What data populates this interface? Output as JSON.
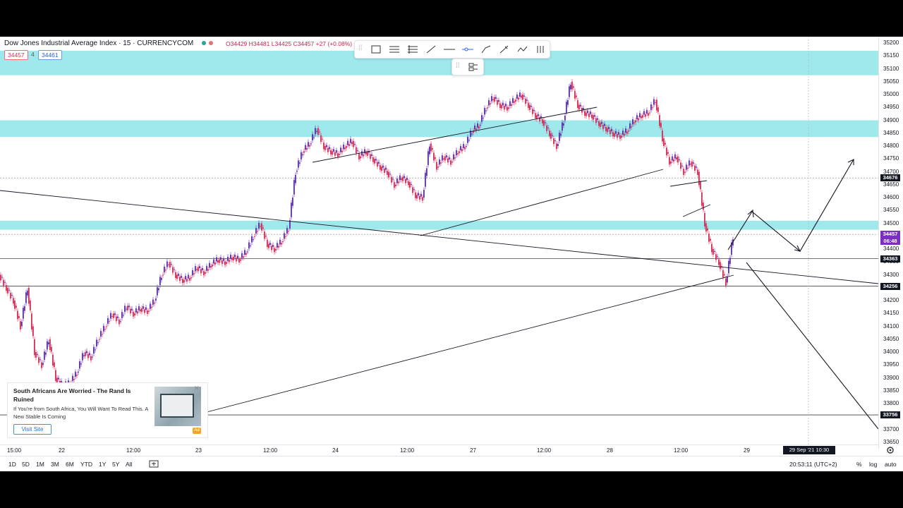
{
  "header": {
    "symbol_title": "Dow Jones Industrial Average Index · 15 · CURRENCYCOM",
    "ohlc": "O34429 H34481 L34425 C34457 +27 (+0.08%)",
    "sell_price": "34457",
    "quantity": "4",
    "buy_price": "34461"
  },
  "toolbar_icons": [
    "rectangle-icon",
    "fib-icon",
    "pitchfork-icon",
    "trendline-icon",
    "horizontal-line-icon",
    "horizontal-ray-icon",
    "path-icon",
    "brush-icon",
    "pattern-icon",
    "bars-icon"
  ],
  "price_axis": {
    "labels": [
      "35200",
      "35150",
      "35100",
      "35050",
      "35000",
      "34950",
      "34900",
      "34850",
      "34800",
      "34750",
      "34700",
      "34650",
      "34600",
      "34550",
      "34500",
      "34450",
      "34400",
      "34350",
      "34300",
      "34250",
      "34200",
      "34150",
      "34100",
      "34050",
      "34000",
      "33950",
      "33900",
      "33850",
      "33800",
      "33750",
      "33700",
      "33650"
    ],
    "tags": [
      {
        "text": "34676",
        "price": 34676,
        "color": "#131722"
      },
      {
        "text": "34457",
        "price": 34457,
        "color": "#7b2fbe"
      },
      {
        "text": "06:48",
        "price": 34430,
        "color": "#7b2fbe"
      },
      {
        "text": "34363",
        "price": 34363,
        "color": "#131722"
      },
      {
        "text": "34256",
        "price": 34256,
        "color": "#131722"
      },
      {
        "text": "33756",
        "price": 33756,
        "color": "#131722"
      }
    ]
  },
  "time_axis": {
    "labels": [
      "15:00",
      "22",
      "12:00",
      "23",
      "12:00",
      "24",
      "12:00",
      "27",
      "12:00",
      "28",
      "12:00",
      "29"
    ],
    "cursor_label": "29 Sep '21   10:30"
  },
  "bottom_bar": {
    "ranges": [
      "1D",
      "5D",
      "1M",
      "3M",
      "6M",
      "YTD",
      "1Y",
      "5Y",
      "All"
    ],
    "clock": "20:53:11 (UTC+2)",
    "percent_label": "%",
    "log_label": "log",
    "auto_label": "auto"
  },
  "ad": {
    "title": "South Africans Are Worried - The Rand Is Ruined",
    "text": "If You're from South Africa, You Will Want To Read This. A New Stable Is Coming",
    "button": "Visit Site",
    "badge": "Ad"
  },
  "colors": {
    "zone": "#9fe8ec",
    "up": "#5b2ea6",
    "down": "#d12e56",
    "line": "#131722"
  },
  "chart_data": {
    "type": "candlestick",
    "zones": [
      [
        35075,
        35170
      ],
      [
        34835,
        34900
      ],
      [
        34475,
        34510
      ]
    ],
    "horizontal_levels": [
      34363,
      34256,
      33756
    ],
    "price_path": [
      [
        0,
        34300
      ],
      [
        10,
        34250
      ],
      [
        20,
        34200
      ],
      [
        30,
        34100
      ],
      [
        40,
        34250
      ],
      [
        50,
        34000
      ],
      [
        60,
        33950
      ],
      [
        70,
        34050
      ],
      [
        80,
        33900
      ],
      [
        90,
        33870
      ],
      [
        100,
        33880
      ],
      [
        110,
        33920
      ],
      [
        120,
        34000
      ],
      [
        130,
        33980
      ],
      [
        140,
        34050
      ],
      [
        150,
        34100
      ],
      [
        160,
        34150
      ],
      [
        170,
        34120
      ],
      [
        180,
        34180
      ],
      [
        190,
        34150
      ],
      [
        200,
        34170
      ],
      [
        210,
        34160
      ],
      [
        220,
        34200
      ],
      [
        230,
        34300
      ],
      [
        240,
        34350
      ],
      [
        250,
        34300
      ],
      [
        260,
        34280
      ],
      [
        270,
        34290
      ],
      [
        280,
        34330
      ],
      [
        290,
        34310
      ],
      [
        300,
        34340
      ],
      [
        310,
        34360
      ],
      [
        320,
        34350
      ],
      [
        330,
        34370
      ],
      [
        340,
        34360
      ],
      [
        350,
        34390
      ],
      [
        360,
        34450
      ],
      [
        370,
        34500
      ],
      [
        380,
        34420
      ],
      [
        390,
        34400
      ],
      [
        400,
        34430
      ],
      [
        410,
        34480
      ],
      [
        420,
        34700
      ],
      [
        430,
        34780
      ],
      [
        440,
        34810
      ],
      [
        450,
        34870
      ],
      [
        460,
        34800
      ],
      [
        470,
        34780
      ],
      [
        480,
        34770
      ],
      [
        490,
        34800
      ],
      [
        500,
        34820
      ],
      [
        510,
        34760
      ],
      [
        520,
        34780
      ],
      [
        530,
        34750
      ],
      [
        540,
        34720
      ],
      [
        550,
        34700
      ],
      [
        560,
        34650
      ],
      [
        570,
        34680
      ],
      [
        580,
        34660
      ],
      [
        590,
        34610
      ],
      [
        600,
        34600
      ],
      [
        610,
        34810
      ],
      [
        620,
        34720
      ],
      [
        630,
        34760
      ],
      [
        640,
        34740
      ],
      [
        650,
        34780
      ],
      [
        660,
        34800
      ],
      [
        670,
        34860
      ],
      [
        680,
        34880
      ],
      [
        690,
        34950
      ],
      [
        700,
        34990
      ],
      [
        710,
        34960
      ],
      [
        720,
        34950
      ],
      [
        730,
        34980
      ],
      [
        740,
        35000
      ],
      [
        750,
        34960
      ],
      [
        760,
        34920
      ],
      [
        770,
        34900
      ],
      [
        780,
        34850
      ],
      [
        790,
        34800
      ],
      [
        800,
        34900
      ],
      [
        810,
        35050
      ],
      [
        820,
        34960
      ],
      [
        830,
        34930
      ],
      [
        840,
        34920
      ],
      [
        850,
        34890
      ],
      [
        860,
        34870
      ],
      [
        870,
        34850
      ],
      [
        880,
        34840
      ],
      [
        890,
        34860
      ],
      [
        900,
        34900
      ],
      [
        910,
        34920
      ],
      [
        920,
        34930
      ],
      [
        930,
        34980
      ],
      [
        940,
        34830
      ],
      [
        950,
        34740
      ],
      [
        960,
        34760
      ],
      [
        970,
        34700
      ],
      [
        980,
        34740
      ],
      [
        990,
        34700
      ],
      [
        1000,
        34500
      ],
      [
        1010,
        34400
      ],
      [
        1020,
        34350
      ],
      [
        1030,
        34270
      ],
      [
        1040,
        34450
      ]
    ]
  }
}
